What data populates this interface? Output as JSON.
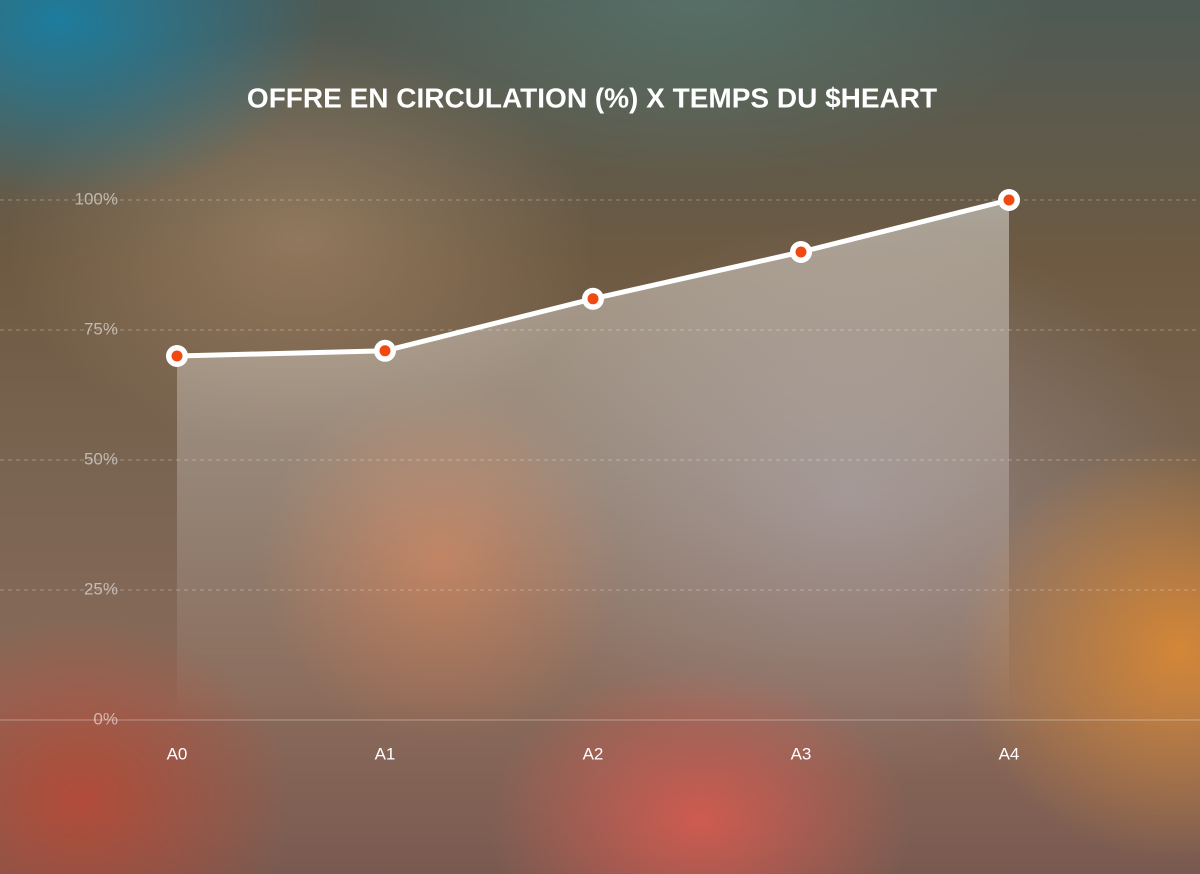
{
  "chart_data": {
    "type": "area",
    "title": "OFFRE EN CIRCULATION (%) X TEMPS DU $HEART",
    "categories": [
      "A0",
      "A1",
      "A2",
      "A3",
      "A4"
    ],
    "values": [
      70,
      71,
      81,
      90,
      100
    ],
    "color": "#ffffff",
    "marker_color": "#f04a12",
    "ylim": [
      0,
      100
    ],
    "yticks": [
      {
        "value": 0,
        "label": "0%"
      },
      {
        "value": 25,
        "label": "25%"
      },
      {
        "value": 50,
        "label": "50%"
      },
      {
        "value": 75,
        "label": "75%"
      },
      {
        "value": 100,
        "label": "100%"
      }
    ],
    "grid": true
  }
}
